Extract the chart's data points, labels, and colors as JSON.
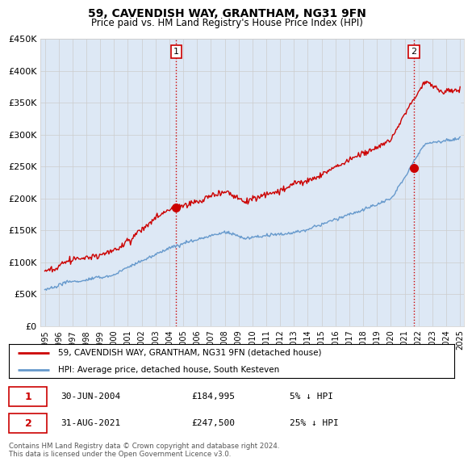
{
  "title": "59, CAVENDISH WAY, GRANTHAM, NG31 9FN",
  "subtitle": "Price paid vs. HM Land Registry's House Price Index (HPI)",
  "legend_label_red": "59, CAVENDISH WAY, GRANTHAM, NG31 9FN (detached house)",
  "legend_label_blue": "HPI: Average price, detached house, South Kesteven",
  "annotation1_date": "30-JUN-2004",
  "annotation1_price": "£184,995",
  "annotation1_hpi": "5% ↓ HPI",
  "annotation2_date": "31-AUG-2021",
  "annotation2_price": "£247,500",
  "annotation2_hpi": "25% ↓ HPI",
  "footer": "Contains HM Land Registry data © Crown copyright and database right 2024.\nThis data is licensed under the Open Government Licence v3.0.",
  "ylim": [
    0,
    450000
  ],
  "yticks": [
    0,
    50000,
    100000,
    150000,
    200000,
    250000,
    300000,
    350000,
    400000,
    450000
  ],
  "ytick_labels": [
    "£0",
    "£50K",
    "£100K",
    "£150K",
    "£200K",
    "£250K",
    "£300K",
    "£350K",
    "£400K",
    "£450K"
  ],
  "marker1_x": 2004.5,
  "marker2_x": 2021.67,
  "marker1_y": 184995,
  "marker2_y": 247500,
  "red_color": "#cc0000",
  "blue_color": "#6699cc",
  "bg_fill_color": "#dde8f5",
  "background_color": "#ffffff",
  "grid_color": "#cccccc",
  "xlim_left": 1994.7,
  "xlim_right": 2025.3
}
